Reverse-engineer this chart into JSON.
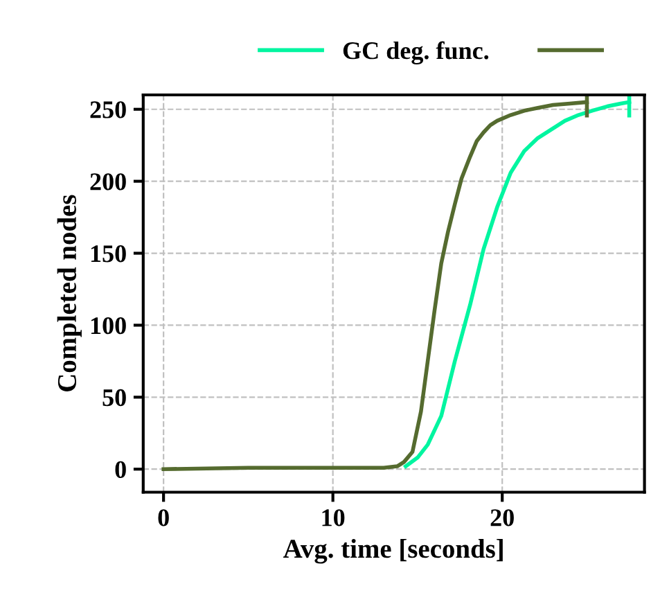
{
  "chart_data": {
    "type": "line",
    "xlabel": "Avg. time [seconds]",
    "ylabel": "Completed nodes",
    "xlim": [
      -1.2,
      28.4
    ],
    "xticks": [
      0,
      10,
      20
    ],
    "ylim": [
      -16,
      260
    ],
    "yticks": [
      0,
      50,
      100,
      150,
      200,
      250
    ],
    "grid": true,
    "legend": "top right",
    "series": [
      {
        "name": "GC deg. func.",
        "color": "#00f5a0",
        "x": [
          14.3,
          15,
          15.6,
          16.4,
          17.2,
          18.1,
          18.9,
          19.7,
          20.5,
          21.3,
          22.1,
          22.9,
          23.7,
          24.5,
          25.3,
          26.2,
          27,
          27.5
        ],
        "values": [
          2,
          8,
          17,
          37,
          75,
          114,
          153,
          182,
          206,
          221,
          230,
          236,
          242,
          246,
          249,
          252,
          254,
          255
        ]
      },
      {
        "color": "#556b2f",
        "x": [
          0,
          5,
          10,
          13,
          13.8,
          14.2,
          14.7,
          15.2,
          15.6,
          16.0,
          16.4,
          16.8,
          17.2,
          17.6,
          18.1,
          18.5,
          18.9,
          19.3,
          19.7,
          20.5,
          21.3,
          22.1,
          23,
          24,
          25
        ],
        "values": [
          0,
          1,
          1,
          1,
          2,
          5,
          12,
          40,
          75,
          110,
          143,
          165,
          184,
          202,
          217,
          228,
          234,
          239,
          242,
          246,
          249,
          251,
          253,
          254,
          255
        ]
      }
    ]
  }
}
